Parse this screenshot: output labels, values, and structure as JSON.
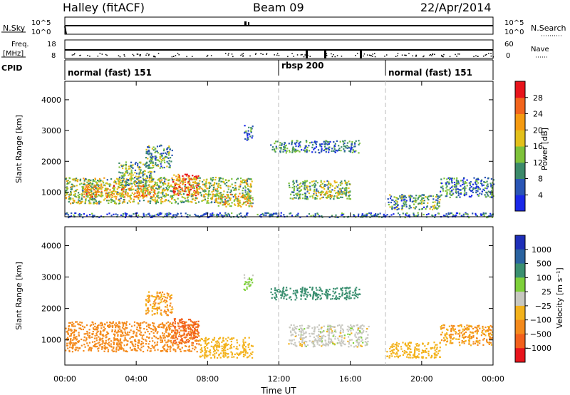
{
  "header": {
    "station": "Halley (fitACF)",
    "beam": "Beam 09",
    "date": "22/Apr/2014"
  },
  "nsky_panel": {
    "left_label": "N.Sky",
    "left_ticks": [
      "10^5",
      "10^0"
    ],
    "right_label": "N.Search",
    "right_ticks": [
      "10^5",
      "10^0"
    ]
  },
  "freq_panel": {
    "left_label_top": "Freq.",
    "left_label_bottom": "[MHz]",
    "left_ticks": [
      "18",
      "8"
    ],
    "right_label": "Nave",
    "right_ticks": [
      "60",
      "0"
    ]
  },
  "cpid_panel": {
    "label": "CPID",
    "segments": [
      {
        "name": "normal (fast) 151",
        "start_hour": 0,
        "end_hour": 12
      },
      {
        "name": "rbsp 200",
        "start_hour": 12,
        "end_hour": 18
      },
      {
        "name": "normal (fast) 151",
        "start_hour": 18,
        "end_hour": 24
      }
    ]
  },
  "power_panel": {
    "ylabel": "Slant Range [km]",
    "yticks": [
      "1000",
      "2000",
      "3000",
      "4000"
    ],
    "colorbar_label": "Power [dB]",
    "colorbar_ticks": [
      "4",
      "8",
      "12",
      "16",
      "20",
      "24",
      "28"
    ],
    "colorbar_colors": [
      "#1a28e8",
      "#2a55b5",
      "#3b8a6a",
      "#7ec23a",
      "#e3c01a",
      "#f59a10",
      "#f2641c",
      "#e8141c"
    ]
  },
  "velocity_panel": {
    "ylabel": "Slant Range [km]",
    "yticks": [
      "1000",
      "2000",
      "3000",
      "4000"
    ],
    "colorbar_label": "Velocity [m s⁻¹]",
    "colorbar_ticks": [
      "1000",
      "500",
      "100",
      "25",
      "−25",
      "−100",
      "−500",
      "−1000"
    ],
    "colorbar_colors": [
      "#1e2fb8",
      "#2a63a0",
      "#3a8f70",
      "#7ed03a",
      "#c8c8c0",
      "#f3b21c",
      "#f48a1c",
      "#f2601c",
      "#e8141c"
    ]
  },
  "xaxis": {
    "label": "Time UT",
    "ticks": [
      "00:00",
      "04:00",
      "08:00",
      "12:00",
      "16:00",
      "20:00",
      "00:00"
    ]
  },
  "chart_data": {
    "type": "heatmap",
    "title": "Halley (fitACF) Beam 09 22/Apr/2014",
    "xlabel": "Time UT",
    "ylabel": "Slant Range [km]",
    "xlim_hours": [
      0,
      24
    ],
    "ylim_km": [
      200,
      4600
    ],
    "series": [
      {
        "name": "Power [dB]",
        "scale": [
          0,
          30
        ],
        "patches": [
          {
            "t0": 0.0,
            "t1": 10.5,
            "r0": 650,
            "r1": 1500,
            "level": 14
          },
          {
            "t0": 1.0,
            "t1": 5.0,
            "r0": 850,
            "r1": 1250,
            "level": 20
          },
          {
            "t0": 3.0,
            "t1": 5.0,
            "r0": 1200,
            "r1": 2000,
            "level": 12
          },
          {
            "t0": 4.5,
            "t1": 6.0,
            "r0": 1800,
            "r1": 2550,
            "level": 10
          },
          {
            "t0": 6.0,
            "t1": 7.5,
            "r0": 900,
            "r1": 1600,
            "level": 24
          },
          {
            "t0": 8.5,
            "t1": 10.5,
            "r0": 550,
            "r1": 950,
            "level": 18
          },
          {
            "t0": 10.0,
            "t1": 10.5,
            "r0": 2700,
            "r1": 3200,
            "level": 8
          },
          {
            "t0": 11.5,
            "t1": 16.5,
            "r0": 2300,
            "r1": 2700,
            "level": 8
          },
          {
            "t0": 12.5,
            "t1": 16.0,
            "r0": 800,
            "r1": 1400,
            "level": 12
          },
          {
            "t0": 14.0,
            "t1": 16.0,
            "r0": 850,
            "r1": 1050,
            "level": 16
          },
          {
            "t0": 18.0,
            "t1": 21.0,
            "r0": 450,
            "r1": 950,
            "level": 10
          },
          {
            "t0": 21.0,
            "t1": 24.0,
            "r0": 850,
            "r1": 1500,
            "level": 8
          },
          {
            "t0": 0.0,
            "t1": 24.0,
            "r0": 200,
            "r1": 350,
            "level": 6
          }
        ]
      },
      {
        "name": "Velocity [m s-1]",
        "scale_ticks": [
          1000,
          500,
          100,
          25,
          -25,
          -100,
          -500,
          -1000
        ],
        "patches": [
          {
            "t0": 0.0,
            "t1": 7.5,
            "r0": 650,
            "r1": 1600,
            "level": -300
          },
          {
            "t0": 4.5,
            "t1": 6.0,
            "r0": 1800,
            "r1": 2550,
            "level": -100
          },
          {
            "t0": 6.0,
            "t1": 7.5,
            "r0": 900,
            "r1": 1700,
            "level": -700
          },
          {
            "t0": 7.5,
            "t1": 10.5,
            "r0": 450,
            "r1": 1100,
            "level": -60
          },
          {
            "t0": 10.0,
            "t1": 10.5,
            "r0": 2600,
            "r1": 3100,
            "level": 40
          },
          {
            "t0": 11.5,
            "t1": 16.5,
            "r0": 2300,
            "r1": 2700,
            "level": 200
          },
          {
            "t0": 12.5,
            "t1": 17.0,
            "r0": 800,
            "r1": 1500,
            "level": 0
          },
          {
            "t0": 18.0,
            "t1": 21.0,
            "r0": 450,
            "r1": 950,
            "level": -60
          },
          {
            "t0": 21.0,
            "t1": 24.0,
            "r0": 850,
            "r1": 1500,
            "level": -100
          }
        ]
      }
    ]
  }
}
